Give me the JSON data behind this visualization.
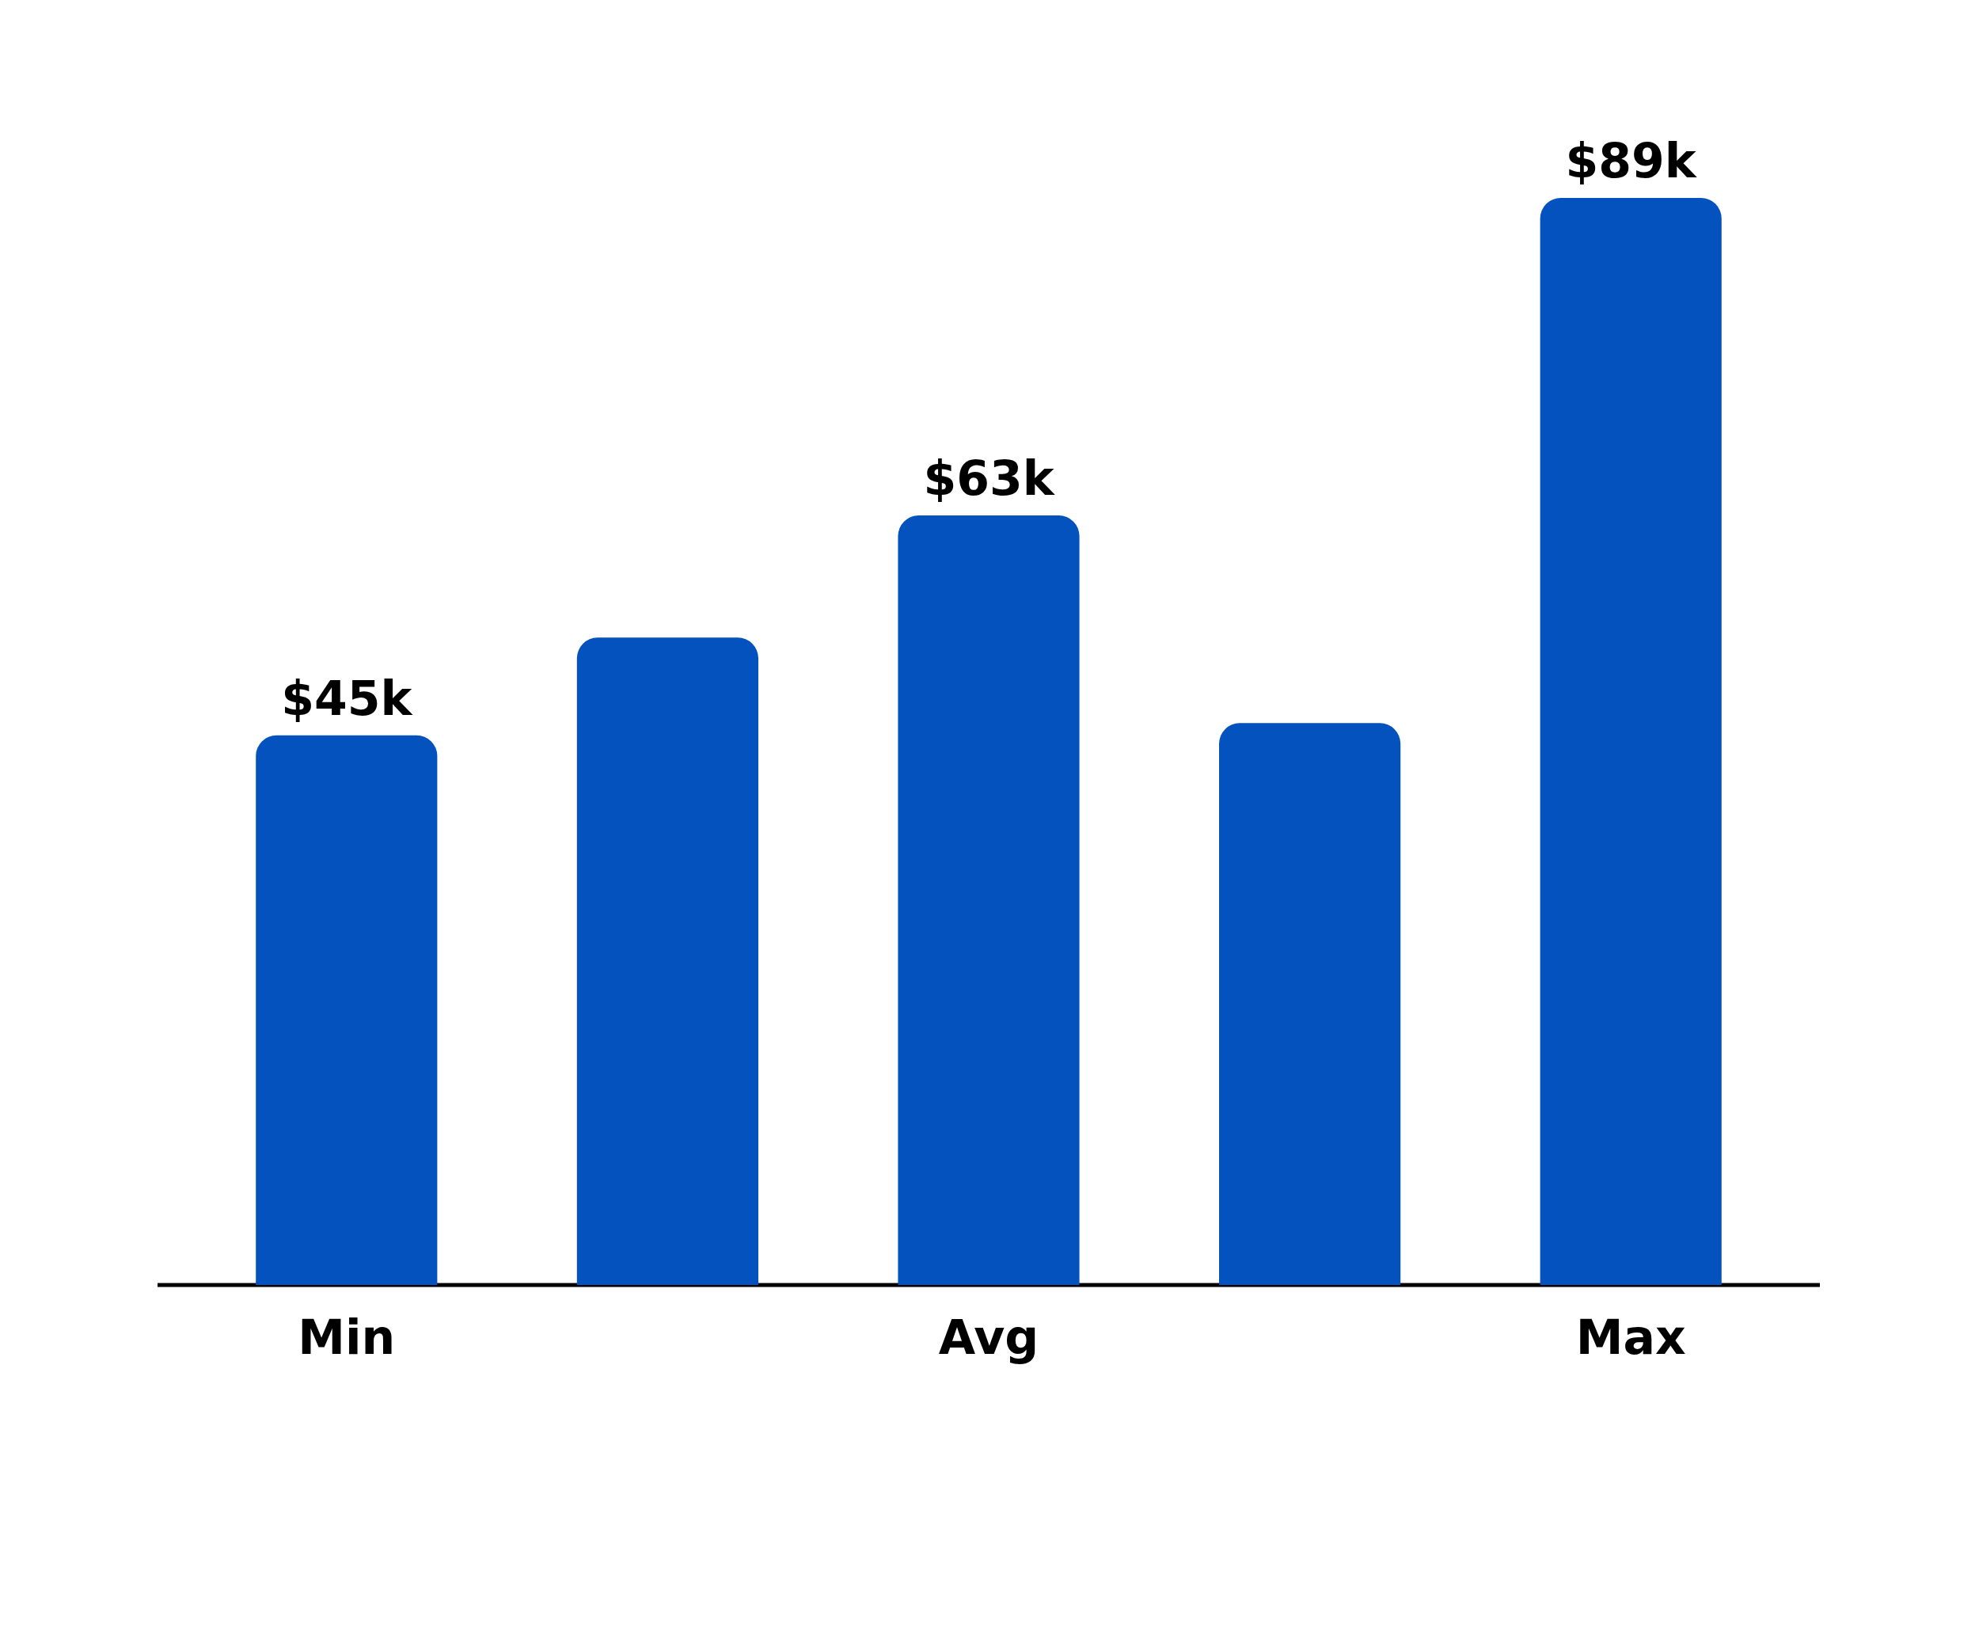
{
  "chart_data": {
    "type": "bar",
    "categories": [
      "Min",
      null,
      "Avg",
      null,
      "Max"
    ],
    "values": [
      45,
      53,
      63,
      46,
      89
    ],
    "value_labels": [
      "$45k",
      null,
      "$63k",
      null,
      "$89k"
    ],
    "color": "#0352be",
    "tick_labels": "x"
  }
}
